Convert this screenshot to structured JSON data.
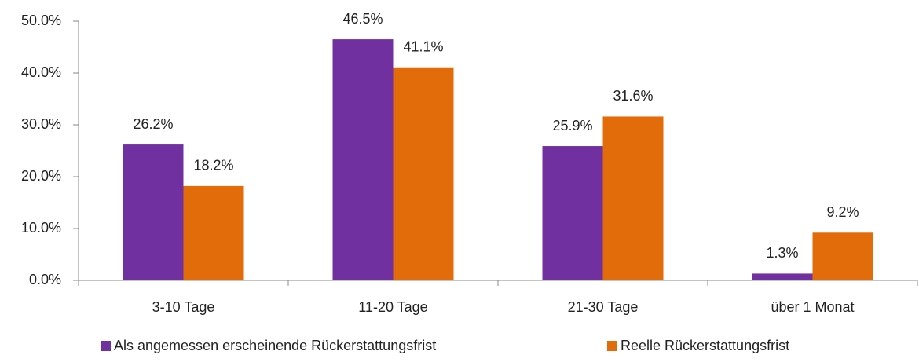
{
  "chart_data": {
    "type": "bar",
    "categories": [
      "3-10 Tage",
      "11-20 Tage",
      "21-30 Tage",
      "über 1 Monat"
    ],
    "series": [
      {
        "name": "Als angemessen erscheinende Rückerstattungsfrist",
        "color": "#7030a0",
        "values": [
          26.2,
          46.5,
          25.9,
          1.3
        ],
        "value_labels": [
          "26.2%",
          "46.5%",
          "25.9%",
          "1.3%"
        ]
      },
      {
        "name": "Reelle Rückerstattungsfrist",
        "color": "#e36c0a",
        "values": [
          18.2,
          41.1,
          31.6,
          9.2
        ],
        "value_labels": [
          "18.2%",
          "41.1%",
          "31.6%",
          "9.2%"
        ]
      }
    ],
    "ylim": [
      0,
      50
    ],
    "yticks": [
      {
        "value": 0,
        "label": "0.0%"
      },
      {
        "value": 10,
        "label": "10.0%"
      },
      {
        "value": 20,
        "label": "20.0%"
      },
      {
        "value": 30,
        "label": "30.0%"
      },
      {
        "value": 40,
        "label": "40.0%"
      },
      {
        "value": 50,
        "label": "50.0%"
      }
    ],
    "grid": false
  }
}
